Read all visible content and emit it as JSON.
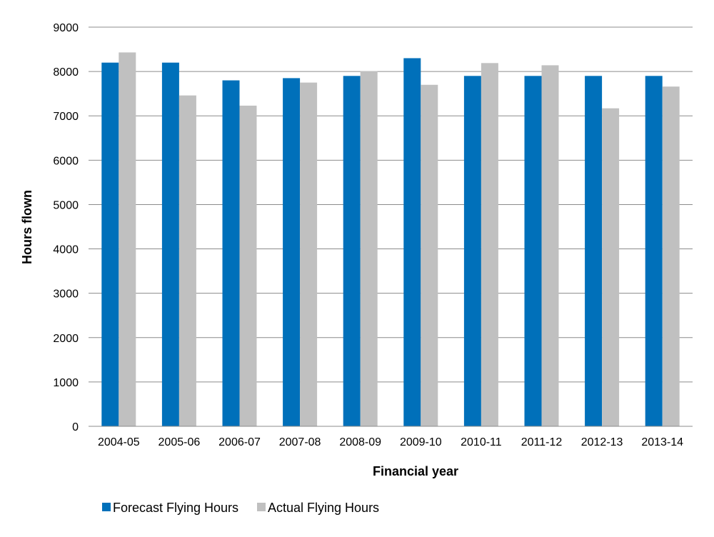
{
  "chart_data": {
    "type": "bar",
    "categories": [
      "2004-05",
      "2005-06",
      "2006-07",
      "2007-08",
      "2008-09",
      "2009-10",
      "2010-11",
      "2011-12",
      "2012-13",
      "2013-14"
    ],
    "series": [
      {
        "name": "Forecast Flying Hours",
        "color": "#0070BA",
        "values": [
          8200,
          8200,
          7800,
          7850,
          7900,
          8300,
          7900,
          7900,
          7900,
          7900
        ]
      },
      {
        "name": "Actual Flying Hours",
        "color": "#C0C0C0",
        "values": [
          8430,
          7460,
          7230,
          7750,
          8010,
          7700,
          8190,
          8140,
          7170,
          7660
        ]
      }
    ],
    "xlabel": "Financial year",
    "ylabel": "Hours flown",
    "ylim": [
      0,
      9000
    ],
    "yticks": [
      "0",
      "1000",
      "2000",
      "3000",
      "4000",
      "5000",
      "6000",
      "7000",
      "8000",
      "9000"
    ],
    "grid": true,
    "legend_position": "bottom-left"
  }
}
